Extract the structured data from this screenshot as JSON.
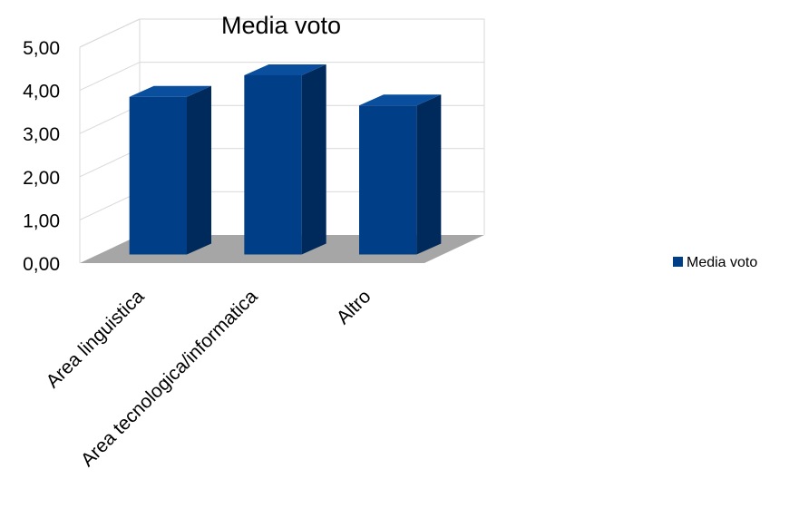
{
  "chart_data": {
    "type": "bar",
    "title": "Media voto",
    "categories": [
      "Area linguistica",
      "Area tecnologica/informatica",
      "Altro"
    ],
    "series": [
      {
        "name": "Media voto",
        "values": [
          3.65,
          4.15,
          3.45
        ]
      }
    ],
    "ylim": [
      0,
      5
    ],
    "yticks": [
      "0,00",
      "1,00",
      "2,00",
      "3,00",
      "4,00",
      "5,00"
    ],
    "xlabel": "",
    "ylabel": "",
    "grid": true,
    "legend_position": "right",
    "style": "3d",
    "colors": {
      "bar_front": "#003F87",
      "bar_side": "#002A5C",
      "bar_top": "#0A4E9E",
      "floor": "#A6A6A6",
      "grid": "#D9D9D9"
    }
  }
}
